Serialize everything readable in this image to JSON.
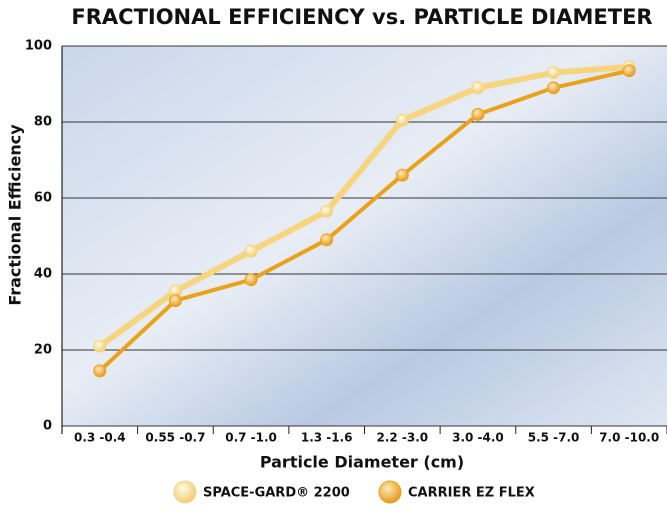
{
  "chart_data": {
    "type": "line",
    "title": "FRACTIONAL EFFICIENCY vs. PARTICLE DIAMETER",
    "x_label": "Particle Diameter (cm)",
    "y_label": "Fractional Efficiency",
    "categories": [
      "0.3 -0.4",
      "0.55 -0.7",
      "0.7 -1.0",
      "1.3 -1.6",
      "2.2 -3.0",
      "3.0 -4.0",
      "5.5 -7.0",
      "7.0 -10.0"
    ],
    "series": [
      {
        "name": "SPACE-GARD® 2200",
        "color": "#f7d57f",
        "values": [
          21,
          35.5,
          46,
          56.5,
          80.5,
          89,
          93,
          94.5
        ]
      },
      {
        "name": "CARRIER EZ FLEX",
        "color": "#e9a21a",
        "values": [
          14.5,
          33,
          38.5,
          49,
          66,
          82,
          89,
          93.5
        ]
      }
    ],
    "ylim": [
      0,
      100
    ],
    "yticks": [
      0,
      20,
      40,
      60,
      80,
      100
    ],
    "grid": true
  }
}
